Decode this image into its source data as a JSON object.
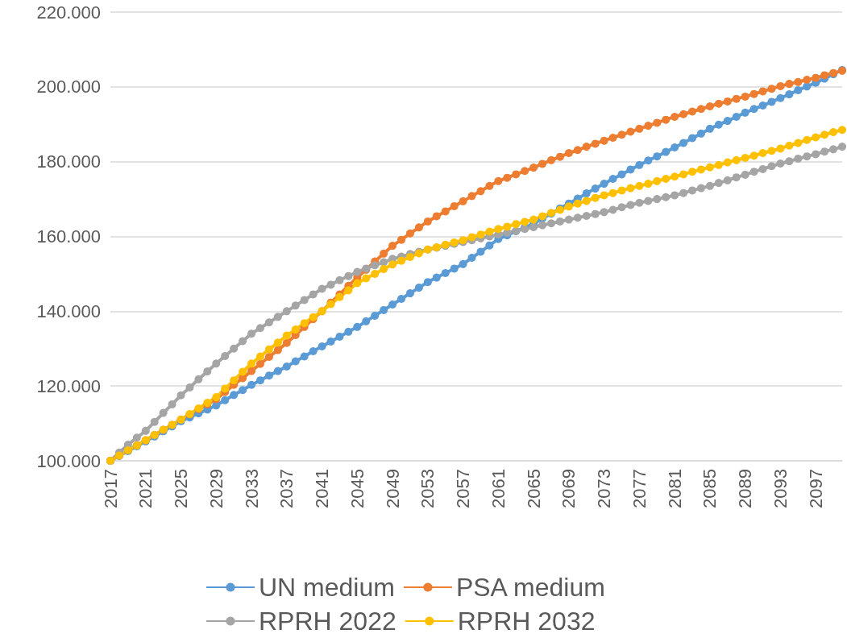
{
  "chart_data": {
    "type": "line",
    "categories": [
      "2017",
      null,
      null,
      null,
      "2021",
      null,
      null,
      null,
      "2025",
      null,
      null,
      null,
      "2029",
      null,
      null,
      null,
      "2033",
      null,
      null,
      null,
      "2037",
      null,
      null,
      null,
      "2041",
      null,
      null,
      null,
      "2045",
      null,
      null,
      null,
      "2049",
      null,
      null,
      null,
      "2053",
      null,
      null,
      null,
      "2057",
      null,
      null,
      null,
      "2061",
      null,
      null,
      null,
      "2065",
      null,
      null,
      null,
      "2069",
      null,
      null,
      null,
      "2073",
      null,
      null,
      null,
      "2077",
      null,
      null,
      null,
      "2081",
      null,
      null,
      null,
      "2085",
      null,
      null,
      null,
      "2089",
      null,
      null,
      null,
      "2093",
      null,
      null,
      null,
      "2097",
      null,
      null,
      null
    ],
    "series": [
      {
        "name": "UN medium",
        "color": "#5b9bd5",
        "values": [
          100,
          101.3,
          102.6,
          103.9,
          105.2,
          106.5,
          107.9,
          109.2,
          110.6,
          111.6,
          112.7,
          113.7,
          114.8,
          116.2,
          117.6,
          118.9,
          120.3,
          121.5,
          122.8,
          124,
          125.2,
          126.6,
          127.9,
          129.3,
          130.6,
          131.9,
          133.2,
          134.5,
          135.8,
          137.3,
          138.8,
          140.3,
          141.8,
          143.3,
          144.8,
          146.3,
          147.8,
          149,
          150.2,
          151.4,
          152.6,
          154.3,
          155.9,
          157.6,
          159.3,
          160.3,
          161.4,
          162.4,
          163.4,
          164.8,
          166.1,
          167.5,
          168.8,
          170.1,
          171.5,
          172.8,
          174.1,
          175.4,
          176.6,
          177.9,
          179.1,
          180.3,
          181.4,
          182.6,
          183.8,
          185,
          186.3,
          187.5,
          188.8,
          189.9,
          190.9,
          192,
          193.1,
          194.1,
          195,
          196,
          197,
          198,
          199.1,
          200.1,
          201.1,
          202.2,
          203.4,
          204.5
        ]
      },
      {
        "name": "PSA medium",
        "color": "#ed7d31",
        "values": [
          100,
          101.4,
          102.8,
          104.1,
          105.5,
          106.9,
          108.3,
          109.6,
          111,
          112.4,
          113.8,
          115.1,
          116.5,
          118.4,
          120.3,
          122.1,
          124,
          125.9,
          127.8,
          129.6,
          131.5,
          133.6,
          135.8,
          137.9,
          140,
          142.3,
          144.5,
          146.8,
          149,
          151.1,
          153.3,
          155.4,
          157.5,
          159.1,
          160.8,
          162.4,
          164,
          165.4,
          166.7,
          168.1,
          169.4,
          170.8,
          172.1,
          173.5,
          174.8,
          175.7,
          176.6,
          177.5,
          178.4,
          179.4,
          180.4,
          181.3,
          182.3,
          183.1,
          184,
          184.8,
          185.6,
          186.4,
          187.2,
          188,
          188.8,
          189.6,
          190.4,
          191.2,
          192,
          192.7,
          193.4,
          194.1,
          194.8,
          195.5,
          196.1,
          196.8,
          197.4,
          198.1,
          198.8,
          199.5,
          200.2,
          200.8,
          201.3,
          201.9,
          202.4,
          203.1,
          203.7,
          204.3
        ]
      },
      {
        "name": "RPRH 2022",
        "color": "#a5a5a5",
        "values": [
          100,
          102.2,
          104.3,
          106.2,
          108,
          110.4,
          112.8,
          115.1,
          117.5,
          119.6,
          121.8,
          123.9,
          126,
          128,
          130,
          132,
          134,
          135.5,
          137,
          138.5,
          140,
          141.5,
          143,
          144.5,
          146,
          147.1,
          148.3,
          149.4,
          150.5,
          151.4,
          152.3,
          153.1,
          154,
          154.6,
          155.3,
          155.9,
          156.5,
          157,
          157.5,
          158,
          158.5,
          159,
          159.5,
          160,
          160.5,
          161,
          161.5,
          162,
          162.5,
          163,
          163.5,
          164,
          164.5,
          165,
          165.5,
          166,
          166.5,
          167.1,
          167.8,
          168.4,
          169,
          169.5,
          170,
          170.5,
          171,
          171.6,
          172.3,
          172.9,
          173.5,
          174.3,
          175,
          175.8,
          176.5,
          177.3,
          178,
          178.8,
          179.5,
          180.1,
          180.8,
          181.4,
          182,
          182.7,
          183.3,
          184
        ]
      },
      {
        "name": "RPRH 2032",
        "color": "#ffc000",
        "values": [
          100,
          101.4,
          102.8,
          104.1,
          105.5,
          106.9,
          108.3,
          109.6,
          111,
          112.5,
          114,
          115.5,
          117,
          119.3,
          121.5,
          123.8,
          126,
          127.9,
          129.8,
          131.6,
          133.5,
          135.1,
          136.8,
          138.4,
          140,
          141.9,
          143.8,
          145.6,
          147.5,
          148.8,
          150,
          151.3,
          152.5,
          153.5,
          154.5,
          155.5,
          156.5,
          157.1,
          157.8,
          158.4,
          159,
          159.8,
          160.5,
          161.3,
          162,
          162.6,
          163.3,
          163.9,
          164.5,
          165.4,
          166.3,
          167.1,
          168,
          168.8,
          169.5,
          170.3,
          171,
          171.6,
          172.3,
          172.9,
          173.5,
          174.1,
          174.8,
          175.4,
          176,
          176.6,
          177.3,
          177.9,
          178.5,
          179.1,
          179.8,
          180.4,
          181,
          181.6,
          182.3,
          182.9,
          183.5,
          184.3,
          185,
          185.8,
          186.5,
          187.2,
          187.9,
          188.5
        ]
      }
    ],
    "ylim": [
      100,
      220
    ],
    "yticks": [
      {
        "value": 100,
        "label": "100.000"
      },
      {
        "value": 120,
        "label": "120.000"
      },
      {
        "value": 140,
        "label": "140.000"
      },
      {
        "value": 160,
        "label": "160.000"
      },
      {
        "value": 180,
        "label": "180.000"
      },
      {
        "value": 200,
        "label": "200.000"
      },
      {
        "value": 220,
        "label": "220.000"
      }
    ],
    "grid": "y",
    "legend": "bottom",
    "marker": "circle",
    "line_style": "solid"
  }
}
